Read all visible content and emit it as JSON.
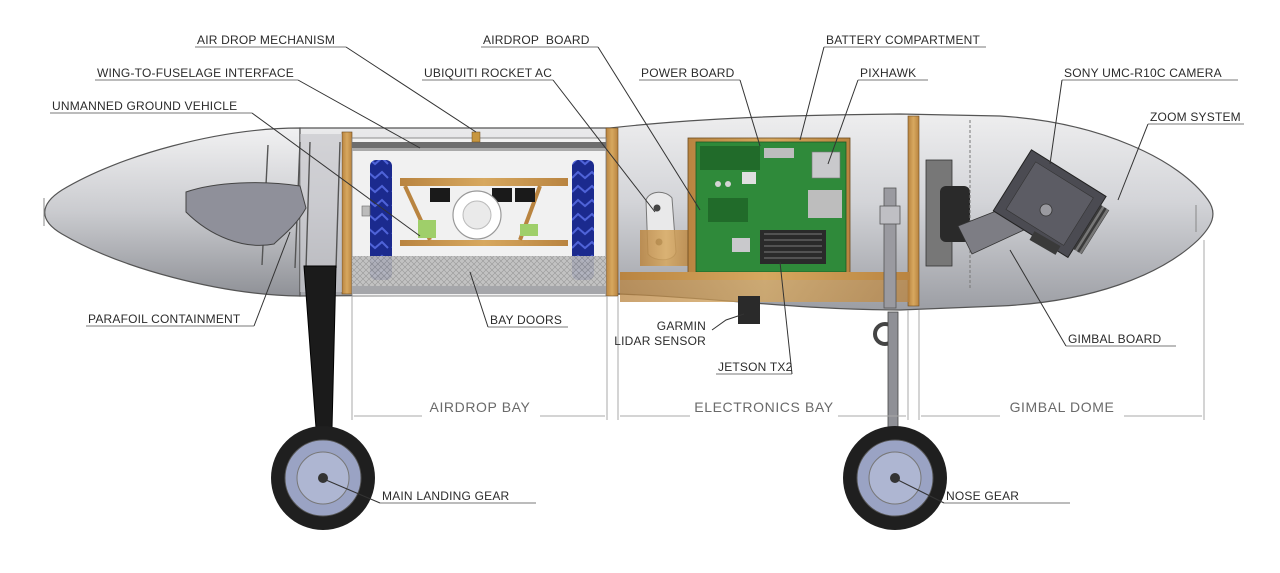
{
  "labels": {
    "air_drop_mechanism": "AIR DROP MECHANISM",
    "wing_to_fuselage_interface": "WING-TO-FUSELAGE INTERFACE",
    "unmanned_ground_vehicle": "UNMANNED GROUND VEHICLE",
    "parafoil_containment": "PARAFOIL CONTAINMENT",
    "airdrop_board": "AIRDROP  BOARD",
    "ubiquiti_rocket_ac": "UBIQUITI ROCKET AC",
    "power_board": "POWER BOARD",
    "battery_compartment": "BATTERY COMPARTMENT",
    "pixhawk": "PIXHAWK",
    "sony_camera": "SONY UMC-R10C CAMERA",
    "zoom_system": "ZOOM SYSTEM",
    "bay_doors": "BAY DOORS",
    "garmin_lidar_line1": "GARMIN",
    "garmin_lidar_line2": "LIDAR SENSOR",
    "jetson_tx2": "JETSON TX2",
    "gimbal_board": "GIMBAL BOARD",
    "main_landing_gear": "MAIN LANDING GEAR",
    "nose_gear": "NOSE GEAR"
  },
  "sections": {
    "airdrop_bay": "AIRDROP BAY",
    "electronics_bay": "ELECTRONICS BAY",
    "gimbal_dome": "GIMBAL DOME"
  },
  "colors": {
    "fuselage": "#cfd0d4",
    "wood": "#c8964e",
    "pcb": "#2f8a3a",
    "track": "#1a2a8c",
    "tire": "#1f1f1f",
    "hub": "#9aa3c4"
  }
}
